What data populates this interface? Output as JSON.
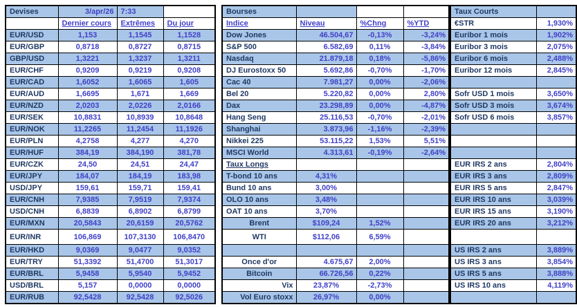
{
  "header": {
    "devises_title": "Devises",
    "date": "3/apr/26",
    "time": "7:33",
    "left_columns": [
      "Dernier cours",
      "Extrêmes",
      "Du jour"
    ],
    "bourses_title": "Bourses",
    "middle_columns": [
      "Indice",
      "Niveau",
      "%Chng",
      "%YTD"
    ],
    "taux_courts_title": "Taux Courts",
    "estr_label": "€STR",
    "estr_value": "1,930%"
  },
  "colors": {
    "row_blue": "#A9C6E8",
    "row_white": "#FFFFFF",
    "label_navy": "#1F3864",
    "value_violet": "#4040C8",
    "border_black": "#000000"
  },
  "rows": [
    {
      "pair": "EUR/USD",
      "last": "1,153",
      "ext": "1,1545",
      "day": "1,1528",
      "mid": {
        "label": "Dow Jones",
        "niveau": "46.504,67",
        "chng": "-0,13%",
        "ytd": "-3,24%"
      },
      "right": {
        "label": "Euribor 1 mois",
        "value": "1,902%"
      }
    },
    {
      "pair": "EUR/GBP",
      "last": "0,8718",
      "ext": "0,8727",
      "day": "0,8715",
      "mid": {
        "label": "S&P 500",
        "niveau": "6.582,69",
        "chng": "0,11%",
        "ytd": "-3,84%"
      },
      "right": {
        "label": "Euribor 3 mois",
        "value": "2,075%"
      }
    },
    {
      "pair": "GBP/USD",
      "last": "1,3221",
      "ext": "1,3237",
      "day": "1,3211",
      "mid": {
        "label": "Nasdaq",
        "niveau": "21.879,18",
        "chng": "0,18%",
        "ytd": "-5,86%"
      },
      "right": {
        "label": "Euribor 6 mois",
        "value": "2,488%"
      }
    },
    {
      "pair": "EUR/CHF",
      "last": "0,9209",
      "ext": "0,9219",
      "day": "0,9208",
      "mid": {
        "label": "DJ Eurostoxx 50",
        "niveau": "5.692,86",
        "chng": "-0,70%",
        "ytd": "-1,70%"
      },
      "right": {
        "label": "Euribor 12 mois",
        "value": "2,845%"
      }
    },
    {
      "pair": "EUR/CAD",
      "last": "1,6052",
      "ext": "1,6065",
      "day": "1,605",
      "mid": {
        "label": "Cac 40",
        "niveau": "7.981,27",
        "chng": "0,00%",
        "ytd": "-2,06%"
      },
      "right": null
    },
    {
      "pair": "EUR/AUD",
      "last": "1,6695",
      "ext": "1,671",
      "day": "1,669",
      "mid": {
        "label": "Bel 20",
        "niveau": "5.220,82",
        "chng": "0,00%",
        "ytd": "2,80%"
      },
      "right": {
        "label": "Sofr USD 1 mois",
        "value": "3,650%"
      }
    },
    {
      "pair": "EUR/NZD",
      "last": "2,0203",
      "ext": "2,0226",
      "day": "2,0166",
      "mid": {
        "label": "Dax",
        "niveau": "23.298,89",
        "chng": "0,00%",
        "ytd": "-4,87%"
      },
      "right": {
        "label": "Sofr USD 3 mois",
        "value": "3,674%"
      }
    },
    {
      "pair": "EUR/SEK",
      "last": "10,8831",
      "ext": "10,8939",
      "day": "10,8648",
      "mid": {
        "label": "Hang Seng",
        "niveau": "25.116,53",
        "chng": "-0,70%",
        "ytd": "-2,01%"
      },
      "right": {
        "label": "Sofr USD 6 mois",
        "value": "3,857%"
      }
    },
    {
      "pair": "EUR/NOK",
      "last": "11,2265",
      "ext": "11,2454",
      "day": "11,1926",
      "mid": {
        "label": "Shanghai",
        "niveau": "3.873,96",
        "chng": "-1,16%",
        "ytd": "-2,39%"
      },
      "right": null
    },
    {
      "pair": "EUR/PLN",
      "last": "4,2758",
      "ext": "4,277",
      "day": "4,270",
      "mid": {
        "label": "Nikkei 225",
        "niveau": "53.115,22",
        "chng": "1,53%",
        "ytd": "5,51%"
      },
      "right": null
    },
    {
      "pair": "EUR/HUF",
      "last": "384,19",
      "ext": "384,190",
      "day": "381,78",
      "mid": {
        "label": "MSCI World",
        "niveau": "4.313,61",
        "chng": "-0,19%",
        "ytd": "-2,64%"
      },
      "right": null
    },
    {
      "pair": "EUR/CZK",
      "last": "24,50",
      "ext": "24,51",
      "day": "24,47",
      "mid": {
        "label": "Taux Longs",
        "underline": true
      },
      "right": {
        "label": "EUR IRS 2 ans",
        "value": "2,804%"
      }
    },
    {
      "pair": "EUR/JPY",
      "last": "184,07",
      "ext": "184,19",
      "day": "183,98",
      "mid": {
        "label": "T-bond 10 ans",
        "niveau": "4,31%",
        "va": "c"
      },
      "right": {
        "label": "EUR IRS 3 ans",
        "value": "2,809%"
      }
    },
    {
      "pair": "USD/JPY",
      "last": "159,61",
      "ext": "159,71",
      "day": "159,41",
      "mid": {
        "label": "Bund 10 ans",
        "niveau": "3,00%",
        "va": "c"
      },
      "right": {
        "label": "EUR IRS 5 ans",
        "value": "2,847%"
      }
    },
    {
      "pair": "EUR/CNH",
      "last": "7,9385",
      "ext": "7,9519",
      "day": "7,9374",
      "mid": {
        "label": "OLO 10 ans",
        "niveau": "3,48%",
        "va": "c"
      },
      "right": {
        "label": "EUR IRS 10 ans",
        "value": "3,039%"
      }
    },
    {
      "pair": "USD/CNH",
      "last": "6,8839",
      "ext": "6,8902",
      "day": "6,8799",
      "mid": {
        "label": "OAT 10 ans",
        "niveau": "3,70%",
        "va": "c"
      },
      "right": {
        "label": "EUR IRS 15 ans",
        "value": "3,190%"
      }
    },
    {
      "pair": "EUR/MXN",
      "last": "20,5843",
      "ext": "20,6159",
      "day": "20,5762",
      "mid": {
        "label": "Brent",
        "niveau": "$109,24",
        "chng": "1,52%",
        "la": "c",
        "va": "c"
      },
      "right": {
        "label": "EUR IRS 20 ans",
        "value": "3,212%"
      }
    },
    {
      "pair": "EUR/INR",
      "last": "106,869",
      "ext": "107,3130",
      "day": "106,8470",
      "tall": true,
      "mid": {
        "label": "WTI",
        "niveau": "$112,06",
        "chng": "6,59%",
        "la": "c",
        "va": "c"
      },
      "right": null
    },
    {
      "pair": "EUR/HKD",
      "last": "9,0369",
      "ext": "9,0477",
      "day": "9,0352",
      "mid": null,
      "right": {
        "label": "US IRS 2 ans",
        "value": "3,889%"
      }
    },
    {
      "pair": "EUR/TRY",
      "last": "51,3392",
      "ext": "51,4700",
      "day": "51,3017",
      "mid": {
        "label": "Once d'or",
        "niveau": "4.675,67",
        "chng": "2,00%",
        "la": "c"
      },
      "right": {
        "label": "US IRS 3 ans",
        "value": "3,854%"
      }
    },
    {
      "pair": "EUR/BRL",
      "last": "5,9458",
      "ext": "5,9540",
      "day": "5,9452",
      "mid": {
        "label": "Bitcoin",
        "niveau": "66.726,56",
        "chng": "0,22%",
        "la": "c"
      },
      "right": {
        "label": "US IRS 5 ans",
        "value": "3,888%"
      }
    },
    {
      "pair": "USD/BRL",
      "last": "5,157",
      "ext": "0,0000",
      "day": "0,0000",
      "mid": {
        "label": "Vix",
        "niveau": "23,87%",
        "chng": "-2,73%",
        "la": "r",
        "va": "c"
      },
      "right": {
        "label": "US IRS 10 ans",
        "value": "4,119%"
      }
    },
    {
      "pair": "EUR/RUB",
      "last": "92,5428",
      "ext": "92,5428",
      "day": "92,5026",
      "mid": {
        "label": "Vol Euro stoxx",
        "niveau": "26,97%",
        "chng": "0,00%",
        "la": "r",
        "va": "c"
      },
      "right": null
    }
  ]
}
